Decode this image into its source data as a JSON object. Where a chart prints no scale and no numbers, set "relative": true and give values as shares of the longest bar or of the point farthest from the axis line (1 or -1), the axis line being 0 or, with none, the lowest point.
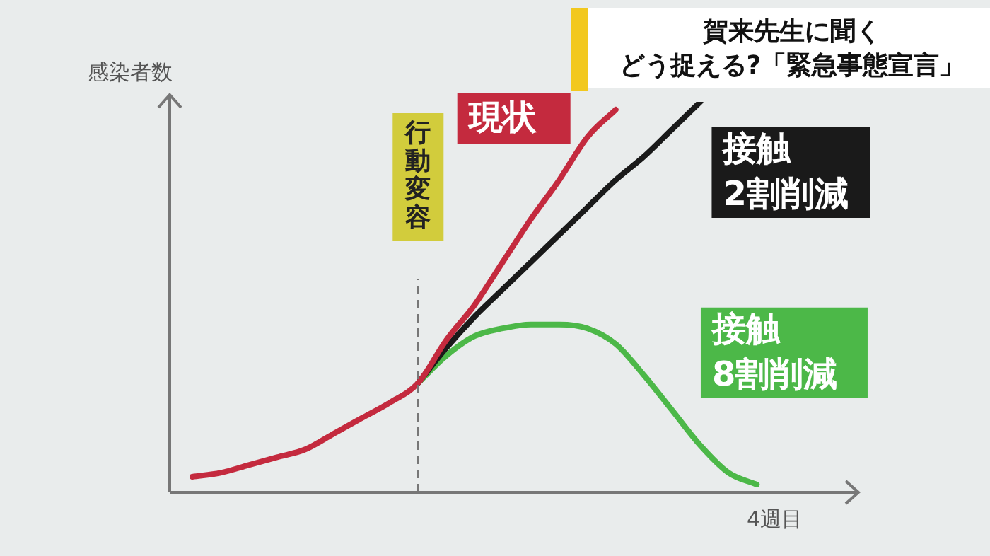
{
  "chart_data": {
    "type": "line",
    "relative": true,
    "title": "賀来先生に聞く",
    "subtitle": "どう捉える?「緊急事態宣言」",
    "ylabel": "感染者数",
    "xlabel": "4週目",
    "categories": [
      null,
      null,
      null,
      null,
      null,
      null,
      null,
      null,
      null,
      null,
      null,
      null,
      null,
      null,
      null,
      null,
      null,
      null,
      null,
      null,
      null,
      null,
      null,
      null
    ],
    "series": [
      {
        "name": "現状",
        "color": "#c42a3e",
        "values": [
          0.04,
          0.05,
          0.07,
          0.09,
          0.11,
          0.15,
          0.19,
          0.23,
          0.28,
          0.39,
          0.48,
          0.59,
          0.7,
          0.8,
          0.91,
          0.98,
          null,
          null,
          null,
          null,
          null,
          null,
          null,
          null
        ]
      },
      {
        "name": "接触\n2割削減",
        "color": "#1a1a1a",
        "values": [
          null,
          null,
          null,
          null,
          null,
          null,
          null,
          null,
          0.28,
          0.37,
          0.45,
          0.52,
          0.59,
          0.66,
          0.73,
          0.8,
          0.86,
          0.93,
          1.0,
          null,
          null,
          null,
          null,
          null
        ]
      },
      {
        "name": "接触\n8割削減",
        "color": "#4cb848",
        "values": [
          null,
          null,
          null,
          null,
          null,
          null,
          null,
          null,
          0.28,
          0.35,
          0.4,
          0.42,
          0.43,
          0.43,
          0.42,
          0.38,
          0.3,
          0.21,
          0.12,
          0.05,
          0.02,
          null,
          null,
          null
        ]
      }
    ],
    "annotations": [
      "行動変容"
    ],
    "marker": "none",
    "line_style": "solid",
    "legend": false
  }
}
